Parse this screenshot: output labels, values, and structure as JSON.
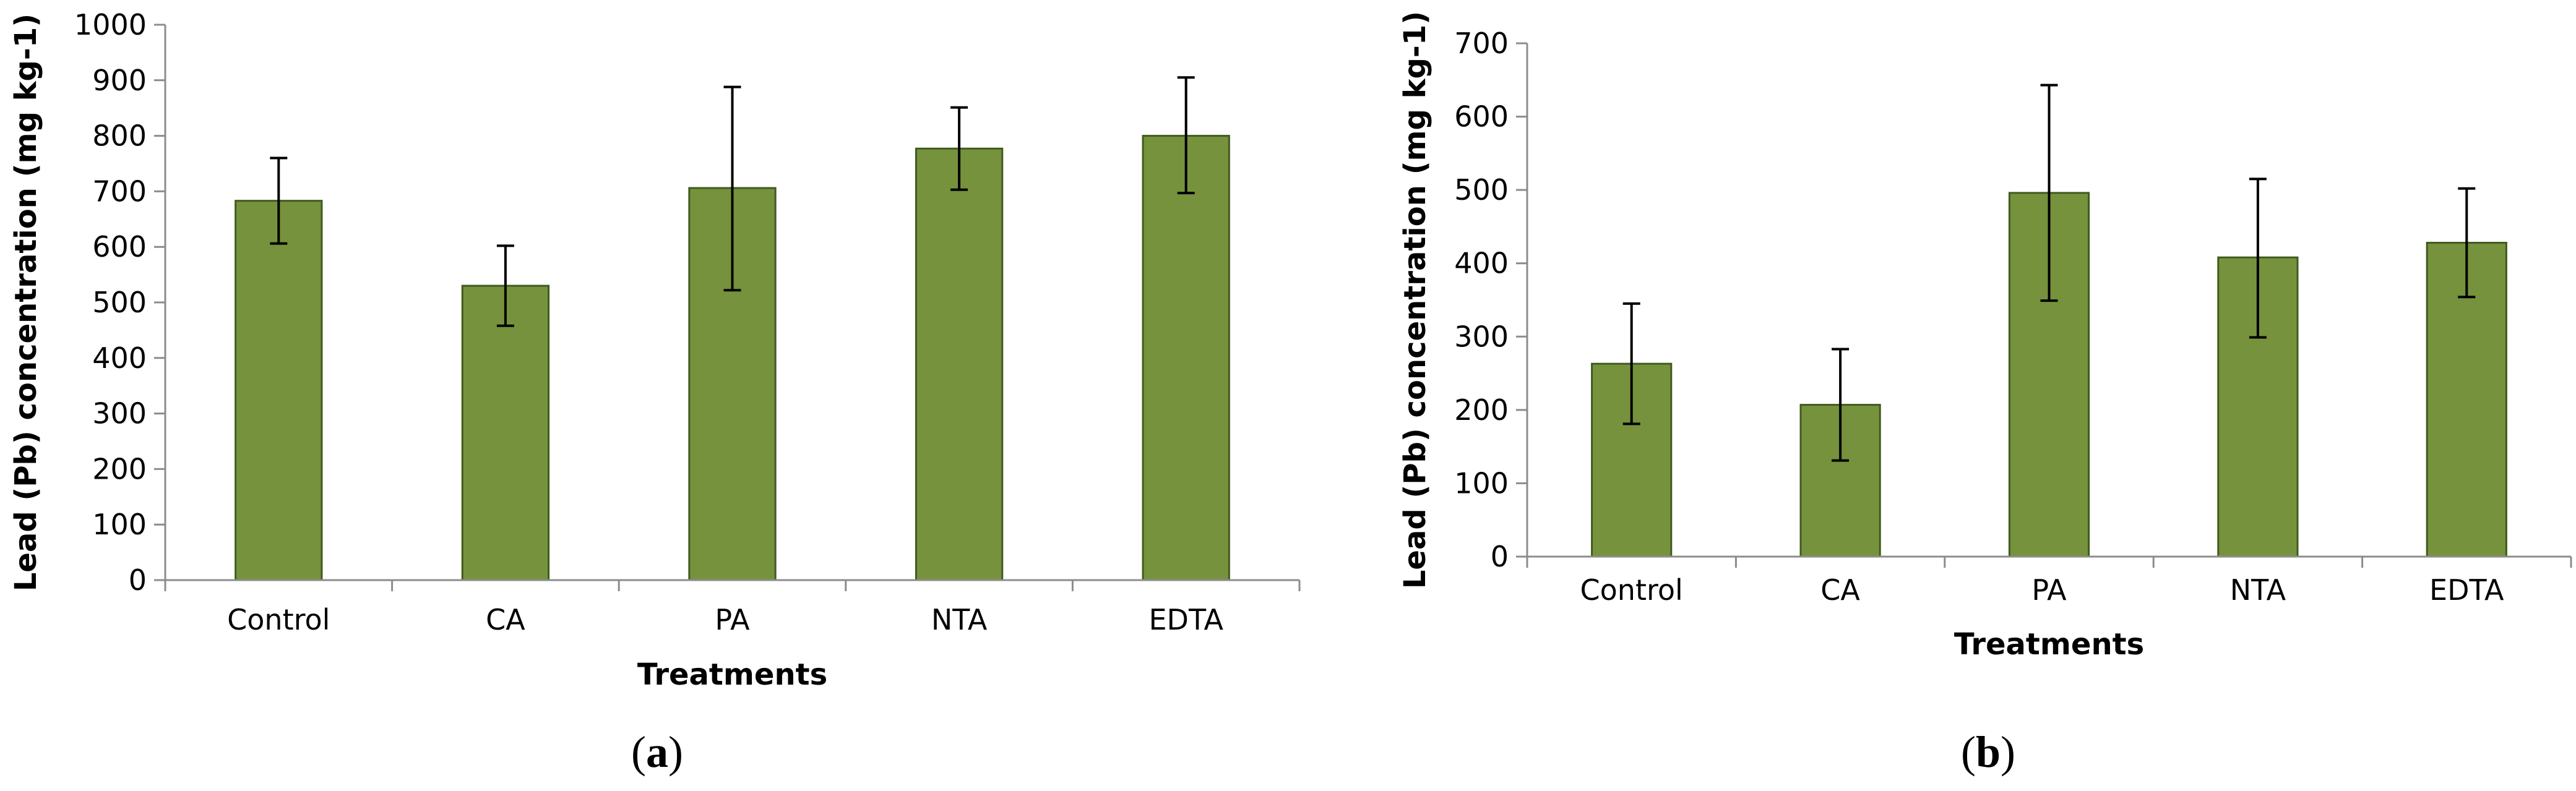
{
  "colors": {
    "bar_fill": "#76923c",
    "bar_edge": "#3f5b1f",
    "axis": "#8c8c8c",
    "error_bar": "#000000"
  },
  "chart_data": [
    {
      "id": "a",
      "type": "bar",
      "caption_label": "a",
      "title": "",
      "xlabel": "Treatments",
      "ylabel": "Lead (Pb) concentration (mg kg-1)",
      "ylim": [
        0,
        1000
      ],
      "ytick_step": 100,
      "yticks": [
        "0",
        "100",
        "200",
        "300",
        "400",
        "500",
        "600",
        "700",
        "800",
        "900",
        "1000"
      ],
      "categories": [
        "Control",
        "CA",
        "PA",
        "NTA",
        "EDTA"
      ],
      "values": [
        683,
        530,
        706,
        777,
        800
      ],
      "error_upper": [
        760,
        602,
        888,
        851,
        905
      ],
      "error_lower": [
        606,
        458,
        522,
        703,
        697
      ],
      "grid": false,
      "legend": "none"
    },
    {
      "id": "b",
      "type": "bar",
      "caption_label": "b",
      "title": "",
      "xlabel": "Treatments",
      "ylabel": "Lead (Pb) concentration (mg kg-1)",
      "ylim": [
        0,
        700
      ],
      "ytick_step": 100,
      "yticks": [
        "0",
        "100",
        "200",
        "300",
        "400",
        "500",
        "600",
        "700"
      ],
      "categories": [
        "Control",
        "CA",
        "PA",
        "NTA",
        "EDTA"
      ],
      "values": [
        263,
        207,
        496,
        408,
        428
      ],
      "error_upper": [
        345,
        283,
        643,
        515,
        502
      ],
      "error_lower": [
        181,
        131,
        349,
        299,
        354
      ],
      "grid": false,
      "legend": "none"
    }
  ]
}
